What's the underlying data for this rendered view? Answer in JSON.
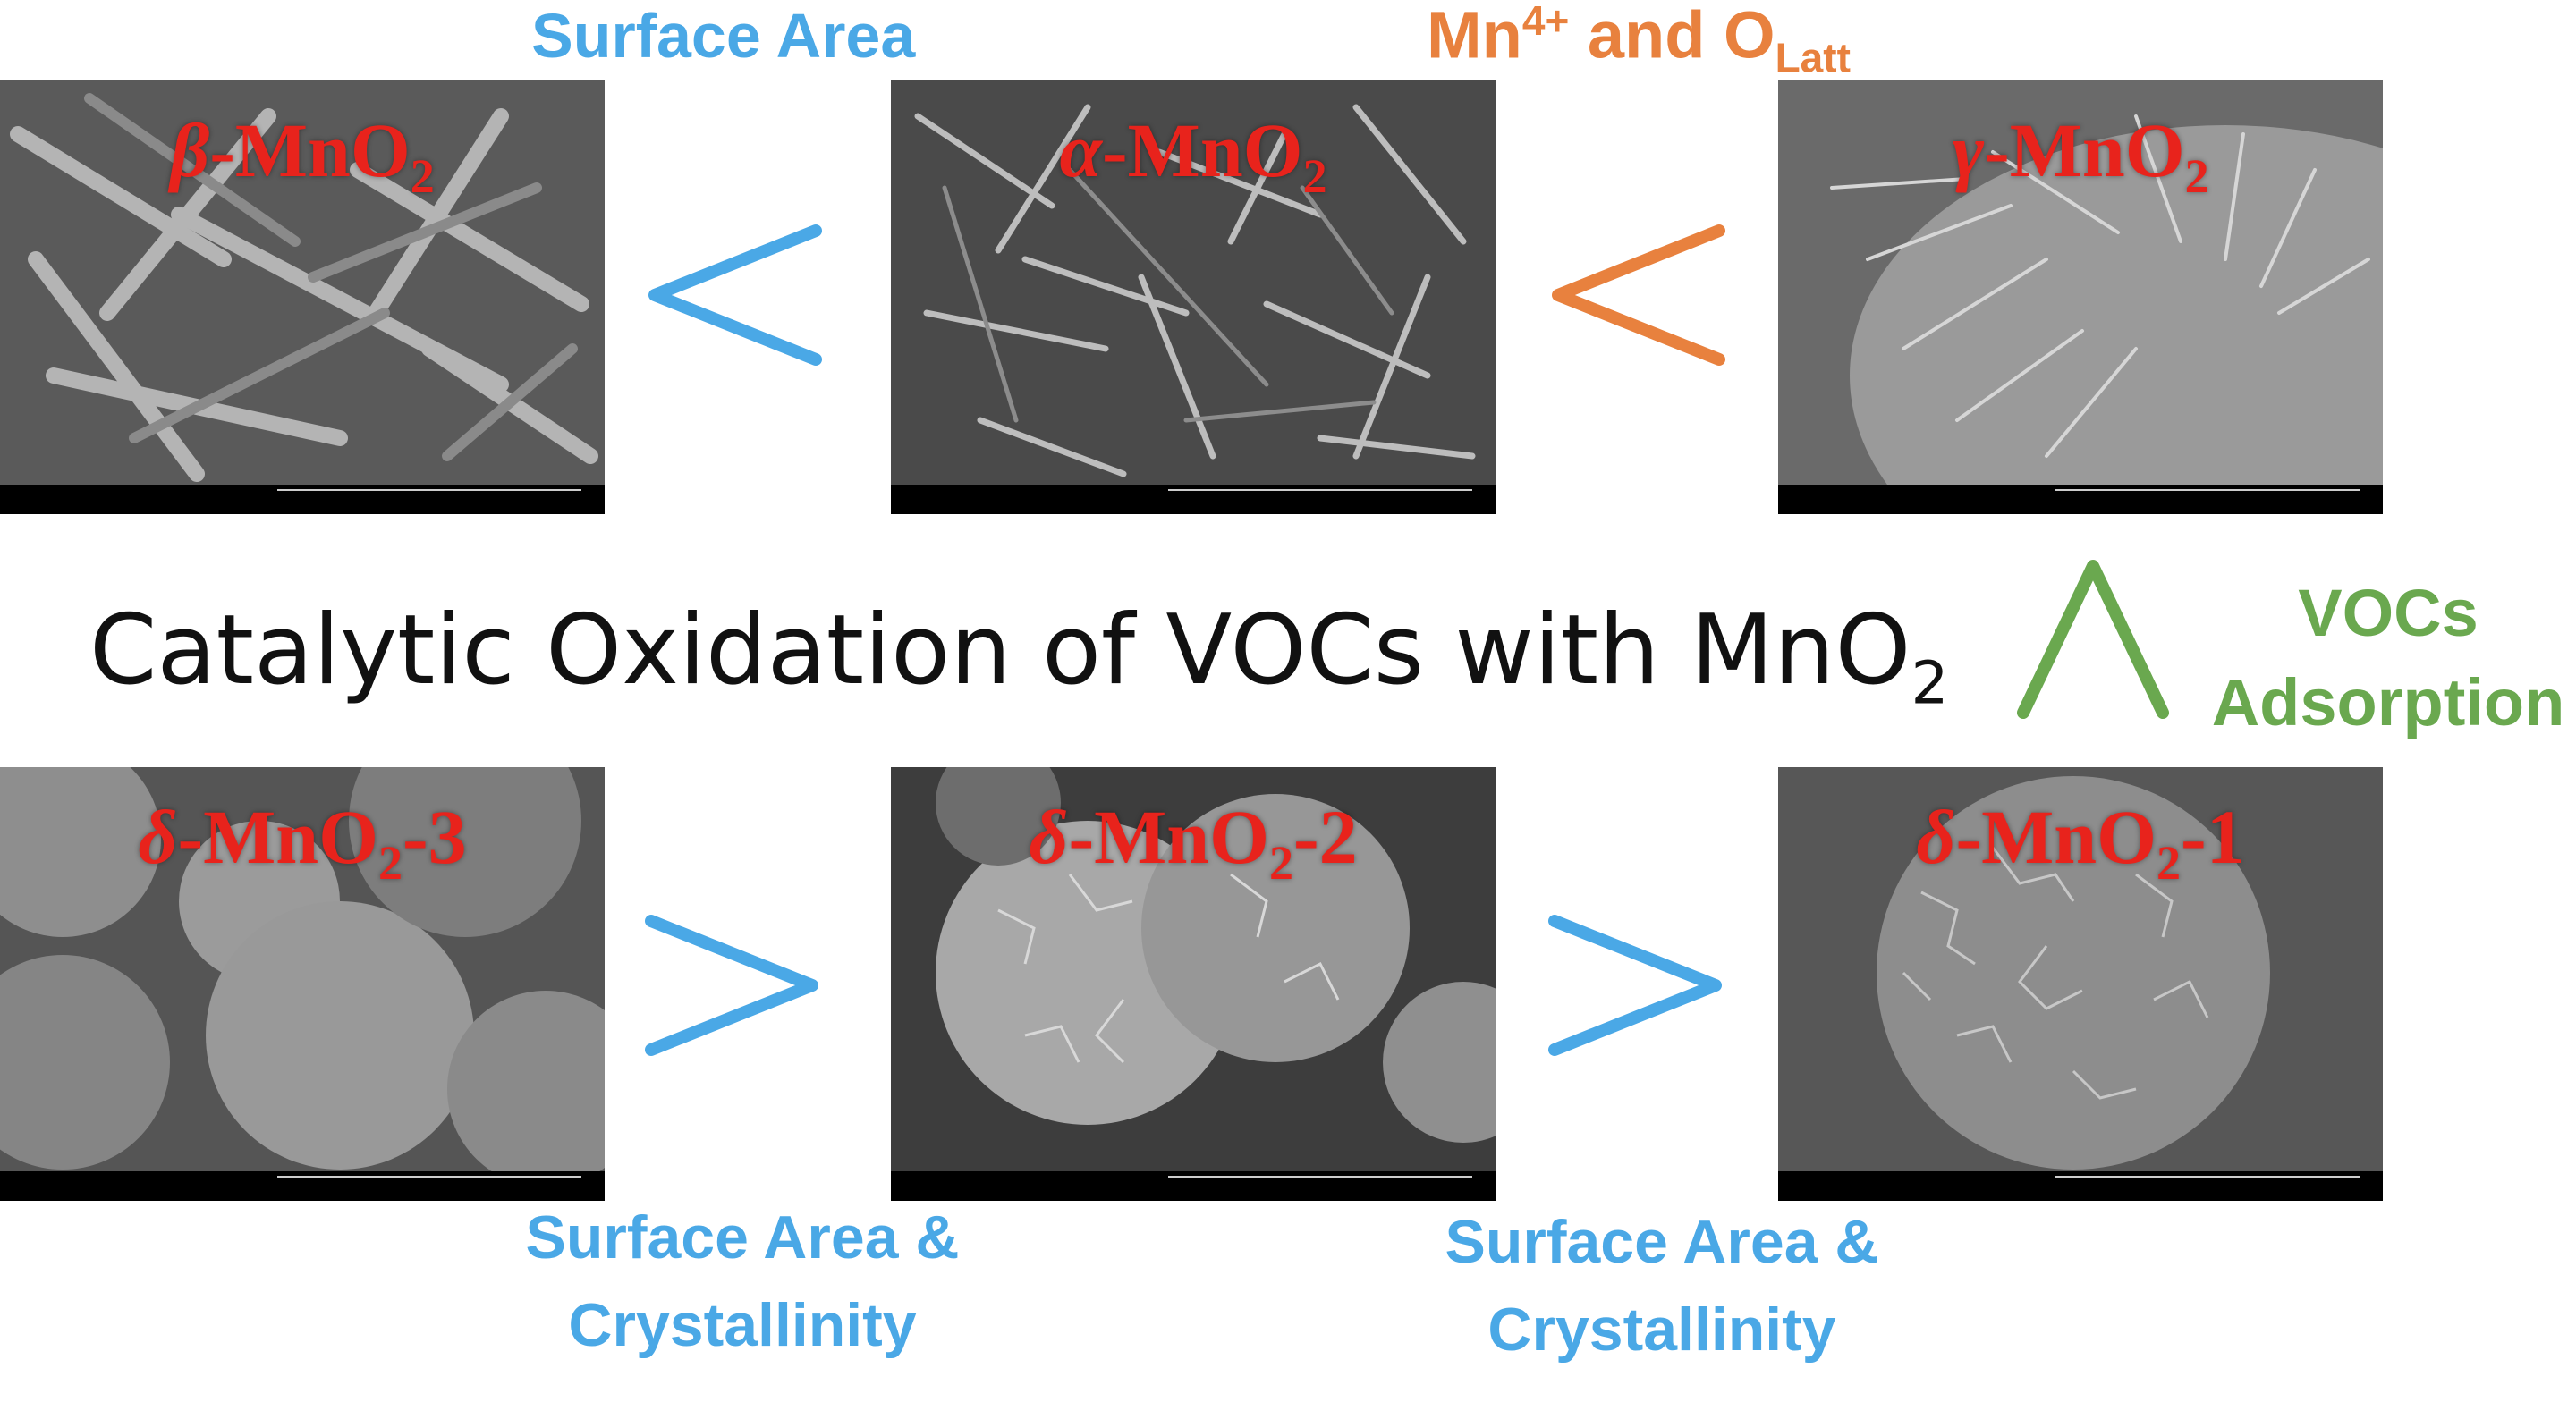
{
  "title": {
    "text": "Catalytic Oxidation of VOCs with MnO",
    "sub": "2"
  },
  "top_labels": {
    "surface_area": "Surface Area",
    "mn_prefix": "Mn",
    "mn_sup": "4+",
    "and": " and O",
    "olatt_sub": "Latt"
  },
  "vocs_label": {
    "line1": "VOCs",
    "line2": "Adsorption"
  },
  "bottom_labels": {
    "left_line1": "Surface Area &",
    "left_line2": "Crystallinity",
    "right_line1": "Surface Area &",
    "right_line2": "Crystallinity"
  },
  "samples": {
    "beta": {
      "greek": "β",
      "text": "-MnO",
      "sub": "2",
      "suffix": ""
    },
    "alpha": {
      "greek": "α",
      "text": "-MnO",
      "sub": "2",
      "suffix": ""
    },
    "gamma": {
      "greek": "γ",
      "text": "-MnO",
      "sub": "2",
      "suffix": ""
    },
    "delta3": {
      "greek": "δ",
      "text": "-MnO",
      "sub": "2",
      "suffix": "-3"
    },
    "delta2": {
      "greek": "δ",
      "text": "-MnO",
      "sub": "2",
      "suffix": "-2"
    },
    "delta1": {
      "greek": "δ",
      "text": "-MnO",
      "sub": "2",
      "suffix": "-1"
    }
  },
  "comparisons": {
    "top_left": "<",
    "top_right": "<",
    "bottom_left": ">",
    "bottom_right": ">",
    "right_vertical": "∧"
  },
  "colors": {
    "blue": "#4aa8e6",
    "orange": "#e8813e",
    "green": "#6aa84f",
    "sample_red": "#e8231c"
  }
}
